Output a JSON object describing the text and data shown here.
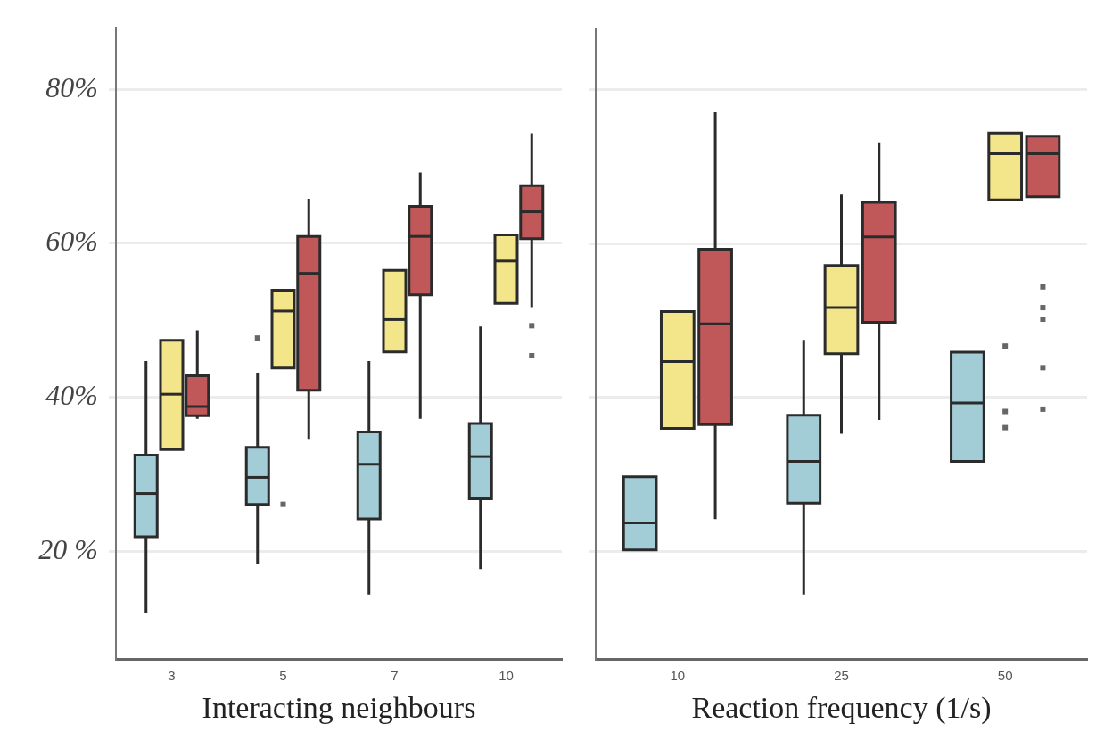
{
  "chart_data": [
    {
      "type": "box",
      "xlabel": "Interacting neighbours",
      "categories": [
        "3",
        "5",
        "7",
        "10"
      ],
      "ylim": [
        6,
        88
      ],
      "yticks": [
        {
          "value": 20,
          "label": "20 %"
        },
        {
          "value": 40,
          "label": "40%"
        },
        {
          "value": 60,
          "label": "60%"
        },
        {
          "value": 80,
          "label": "80%"
        }
      ],
      "grid": "y",
      "legend": false,
      "series": [
        {
          "color": "#a3cdd6",
          "boxes": [
            {
              "low": 12,
              "q1": 21.9,
              "median": 27.5,
              "q3": 32.5,
              "high": 44.7
            },
            {
              "low": 18.3,
              "q1": 26.1,
              "median": 29.6,
              "q3": 33.5,
              "high": 43.2,
              "outliers": [
                47.7
              ]
            },
            {
              "low": 14.4,
              "q1": 24.2,
              "median": 31.3,
              "q3": 35.5,
              "high": 44.7
            },
            {
              "low": 17.7,
              "q1": 26.8,
              "median": 32.3,
              "q3": 36.6,
              "high": 49.2
            }
          ]
        },
        {
          "color": "#f3e58a",
          "boxes": [
            {
              "low": 33.2,
              "q1": 33.2,
              "median": 40.4,
              "q3": 47.4,
              "high": 47.4
            },
            {
              "low": 43.8,
              "q1": 43.8,
              "median": 51.2,
              "q3": 53.9,
              "high": 53.9,
              "outliers": [
                26.1
              ]
            },
            {
              "low": 45.9,
              "q1": 45.9,
              "median": 50.1,
              "q3": 56.5,
              "high": 56.5
            },
            {
              "low": 52.2,
              "q1": 52.2,
              "median": 57.7,
              "q3": 61.1,
              "high": 61.1
            }
          ]
        },
        {
          "color": "#c0585a",
          "boxes": [
            {
              "low": 37.2,
              "q1": 37.6,
              "median": 38.8,
              "q3": 42.8,
              "high": 48.7
            },
            {
              "low": 34.6,
              "q1": 40.9,
              "median": 56.1,
              "q3": 60.9,
              "high": 65.8
            },
            {
              "low": 37.2,
              "q1": 53.3,
              "median": 60.9,
              "q3": 64.8,
              "high": 69.2
            },
            {
              "low": 51.7,
              "q1": 60.6,
              "median": 64.1,
              "q3": 67.5,
              "high": 74.3,
              "outliers": [
                49.3,
                45.4
              ]
            }
          ]
        }
      ]
    },
    {
      "type": "box",
      "xlabel": "Reaction frequency (1/s)",
      "categories": [
        "10",
        "25",
        "50"
      ],
      "ylim": [
        6,
        88
      ],
      "yticks": [
        {
          "value": 20,
          "label": null
        },
        {
          "value": 40,
          "label": null
        },
        {
          "value": 60,
          "label": null
        },
        {
          "value": 80,
          "label": null
        }
      ],
      "tick_labels": "x",
      "grid": "y",
      "legend": false,
      "series": [
        {
          "color": "#a3cdd6",
          "boxes": [
            {
              "low": 20.2,
              "q1": 20.2,
              "median": 23.7,
              "q3": 29.7,
              "high": 29.7
            },
            {
              "low": 14.4,
              "q1": 26.3,
              "median": 31.7,
              "q3": 37.7,
              "high": 47.5
            },
            {
              "low": 31.7,
              "q1": 31.7,
              "median": 39.3,
              "q3": 45.9,
              "high": 45.9
            }
          ]
        },
        {
          "color": "#f3e58a",
          "boxes": [
            {
              "low": 36,
              "q1": 36,
              "median": 44.7,
              "q3": 51.2,
              "high": 51.2
            },
            {
              "low": 35.3,
              "q1": 45.7,
              "median": 51.7,
              "q3": 57.2,
              "high": 66.4
            },
            {
              "low": 65.7,
              "q1": 65.7,
              "median": 71.7,
              "q3": 74.4,
              "high": 74.4,
              "outliers": [
                46.7,
                38.2,
                36.1
              ]
            }
          ]
        },
        {
          "color": "#c0585a",
          "boxes": [
            {
              "low": 24.2,
              "q1": 36.5,
              "median": 49.6,
              "q3": 59.3,
              "high": 77.1
            },
            {
              "low": 37.1,
              "q1": 49.8,
              "median": 60.9,
              "q3": 65.4,
              "high": 73.2
            },
            {
              "low": 66.1,
              "q1": 66.1,
              "median": 71.7,
              "q3": 74,
              "high": 74,
              "outliers": [
                54.4,
                51.7,
                50.2,
                43.9,
                38.5
              ]
            }
          ]
        }
      ]
    }
  ]
}
